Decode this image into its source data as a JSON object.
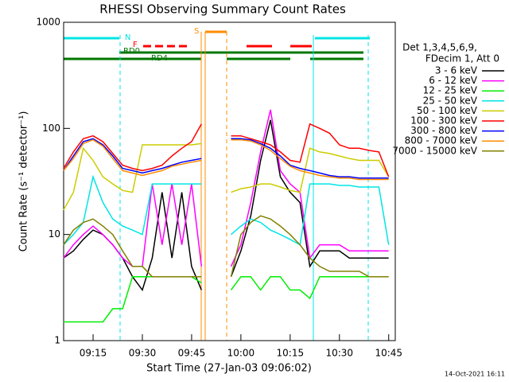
{
  "chart_data": {
    "type": "line",
    "title": "RHESSI Observing Summary Count Rates",
    "x_label": "Start Time (27-Jan-03 09:06:02)",
    "y_label": "Count Rate (s⁻¹ detector⁻¹)",
    "log_y": true,
    "xlim": [
      6.03,
      107
    ],
    "ylim": [
      1,
      1000
    ],
    "xticks": [
      {
        "value": 15,
        "label": "09:15"
      },
      {
        "value": 30,
        "label": "09:30"
      },
      {
        "value": 45,
        "label": "09:45"
      },
      {
        "value": 60,
        "label": "10:00"
      },
      {
        "value": 75,
        "label": "10:15"
      },
      {
        "value": 90,
        "label": "10:30"
      },
      {
        "value": 105,
        "label": "10:45"
      }
    ],
    "yticks": [
      1,
      10,
      100,
      1000
    ],
    "legend_header": [
      "Det 1,3,4,5,6,9,",
      "FDecim 1, Att 0"
    ],
    "flags": [
      "N",
      "F",
      "RD0",
      "RD4",
      "S"
    ],
    "timestamp": "14-Oct-2021 16:11",
    "x": [
      6,
      9,
      12,
      15,
      18,
      21,
      24,
      27,
      30,
      33,
      36,
      39,
      42,
      45,
      48,
      52,
      57,
      60,
      63,
      66,
      69,
      72,
      75,
      78,
      81,
      84,
      87,
      90,
      93,
      96,
      99,
      102,
      105
    ],
    "series": [
      {
        "name": "3 - 6 keV",
        "color": "#000000",
        "values": [
          6,
          7,
          9,
          11,
          10,
          8,
          6,
          4,
          3,
          6,
          25,
          6,
          25,
          5,
          3,
          null,
          4,
          7,
          15,
          50,
          120,
          35,
          25,
          20,
          5,
          7,
          7,
          7,
          6,
          6,
          6,
          6,
          6
        ]
      },
      {
        "name": "6 - 12 keV",
        "color": "#ff00ff",
        "values": [
          6,
          8,
          10,
          12,
          10,
          8,
          6,
          5,
          5,
          30,
          8,
          30,
          8,
          30,
          5,
          null,
          5,
          8,
          20,
          60,
          150,
          40,
          30,
          25,
          6,
          8,
          8,
          8,
          7,
          7,
          7,
          7,
          7
        ]
      },
      {
        "name": "12 - 25 keV",
        "color": "#00ee00",
        "values": [
          1.5,
          1.5,
          1.5,
          1.5,
          1.5,
          2,
          2,
          4,
          4,
          4,
          4,
          4,
          4,
          4,
          3.5,
          null,
          3,
          4,
          4,
          3,
          4,
          4,
          3,
          3,
          2.5,
          4,
          4,
          4,
          4,
          4,
          4,
          4,
          4
        ]
      },
      {
        "name": "25 - 50 keV",
        "color": "#00e5e5",
        "values": [
          8,
          10,
          13,
          35,
          20,
          14,
          12,
          11,
          10,
          30,
          30,
          30,
          30,
          30,
          30,
          null,
          10,
          12,
          14,
          13,
          11,
          10,
          9,
          8,
          30,
          30,
          30,
          29,
          29,
          28,
          28,
          28,
          8
        ]
      },
      {
        "name": "50 - 100 keV",
        "color": "#cccc00",
        "values": [
          17,
          25,
          65,
          50,
          35,
          30,
          26,
          25,
          70,
          70,
          70,
          70,
          70,
          70,
          72,
          null,
          25,
          27,
          28,
          30,
          30,
          28,
          26,
          25,
          65,
          60,
          58,
          55,
          52,
          50,
          50,
          50,
          35
        ]
      },
      {
        "name": "100 - 300 keV",
        "color": "#ff0000",
        "values": [
          42,
          60,
          80,
          85,
          75,
          58,
          45,
          42,
          40,
          42,
          45,
          55,
          65,
          75,
          110,
          null,
          85,
          85,
          80,
          75,
          70,
          60,
          50,
          48,
          110,
          100,
          90,
          70,
          65,
          65,
          62,
          60,
          35
        ]
      },
      {
        "name": "300 - 800 keV",
        "color": "#0000ff",
        "values": [
          40,
          55,
          75,
          80,
          70,
          55,
          42,
          40,
          38,
          40,
          42,
          45,
          48,
          50,
          52,
          null,
          80,
          80,
          78,
          72,
          65,
          55,
          45,
          42,
          40,
          38,
          36,
          35,
          35,
          34,
          34,
          34,
          34
        ]
      },
      {
        "name": "800 - 7000 keV",
        "color": "#ff8c00",
        "values": [
          40,
          52,
          72,
          78,
          68,
          52,
          40,
          38,
          36,
          38,
          40,
          44,
          46,
          48,
          50,
          null,
          78,
          78,
          76,
          70,
          62,
          52,
          44,
          40,
          38,
          36,
          35,
          34,
          34,
          33,
          33,
          33,
          33
        ]
      },
      {
        "name": "7000 - 15000 keV",
        "color": "#808000",
        "values": [
          8,
          11,
          13,
          14,
          12,
          10,
          7,
          5,
          5,
          4,
          4,
          4,
          4,
          4,
          4,
          null,
          4,
          10,
          13,
          15,
          14,
          12,
          10,
          8,
          6,
          5,
          4.5,
          4.5,
          4.5,
          4.5,
          4,
          4,
          4
        ]
      }
    ]
  }
}
